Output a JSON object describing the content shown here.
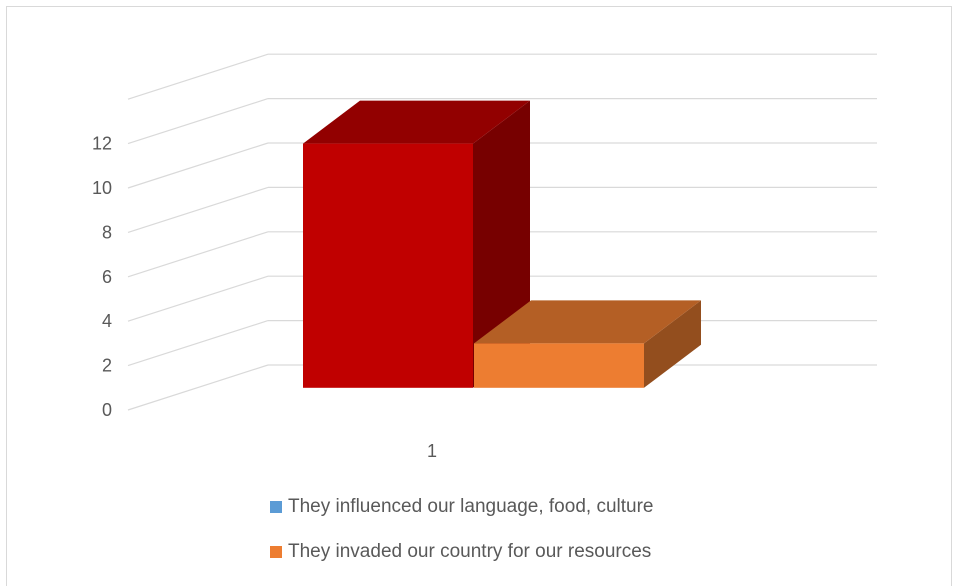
{
  "chart_data": {
    "type": "bar",
    "subtype": "3d-clustered-column",
    "categories": [
      "1"
    ],
    "yticks": [
      "0",
      "2",
      "4",
      "6",
      "8",
      "10",
      "12"
    ],
    "ylim": [
      0,
      14
    ],
    "grid": true,
    "legend_position": "bottom",
    "series": [
      {
        "name": "They influenced our language, food, culture",
        "values": [
          12
        ],
        "color": "#5b9bd5",
        "rendered_color": "#c00000"
      },
      {
        "name": "They invaded our country for our resources",
        "values": [
          3
        ],
        "color": "#ed7d31",
        "rendered_color": "#ed7d31"
      }
    ]
  }
}
